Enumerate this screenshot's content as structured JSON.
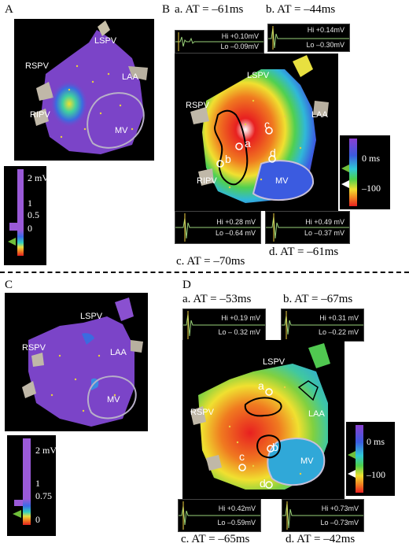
{
  "colors": {
    "map_background": "#000000",
    "tissue_purple": "#7b44c8",
    "egm_trace": "#9ad27a",
    "marker_green": "#6fbf3a",
    "marker_purple": "#9b59d0"
  },
  "divider": "dashed",
  "panels": {
    "A": {
      "letter": "A",
      "labels": {
        "lspv": "LSPV",
        "rspv": "RSPV",
        "laa": "LAA",
        "ripv": "RIPV",
        "mv": "MV"
      },
      "colorbar": {
        "top": "2 mV",
        "mid1": "1",
        "mid2": "0.5",
        "bottom": "0"
      }
    },
    "B": {
      "letter": "B",
      "labels": {
        "lspv": "LSPV",
        "rspv": "RSPV",
        "laa": "LAA",
        "ripv": "RIPV",
        "mv": "MV"
      },
      "points": {
        "a": "a",
        "b": "b",
        "c": "c",
        "d": "d"
      },
      "at": {
        "a": "a. AT = –61ms",
        "b": "b. AT = –44ms",
        "c": "c. AT = –70ms",
        "d": "d. AT = –61ms"
      },
      "egm": {
        "a": {
          "hi": "Hi +0.10mV",
          "lo": "Lo –0.09mV"
        },
        "b": {
          "hi": "Hi +0.14mV",
          "lo": "Lo –0.30mV"
        },
        "c": {
          "hi": "Hi +0.28 mV",
          "lo": "Lo –0.64 mV"
        },
        "d": {
          "hi": "Hi +0.49 mV",
          "lo": "Lo –0.37 mV"
        }
      },
      "colorbar": {
        "top": "0 ms",
        "bottom": "–100"
      }
    },
    "C": {
      "letter": "C",
      "labels": {
        "lspv": "LSPV",
        "rspv": "RSPV",
        "laa": "LAA",
        "mv": "MV"
      },
      "colorbar": {
        "top": "2 mV",
        "mid1": "1",
        "mid2": "0.75",
        "bottom": "0"
      }
    },
    "D": {
      "letter": "D",
      "labels": {
        "lspv": "LSPV",
        "rspv": "RSPV",
        "laa": "LAA",
        "mv": "MV"
      },
      "points": {
        "a": "a",
        "b": "b",
        "c": "c",
        "d": "d"
      },
      "at": {
        "a": "a. AT = –53ms",
        "b": "b. AT = –67ms",
        "c": "c. AT = –65ms",
        "d": "d. AT = –42ms"
      },
      "egm": {
        "a": {
          "hi": "Hi +0.19 mV",
          "lo": "Lo – 0.32 mV"
        },
        "b": {
          "hi": "Hi +0.31 mV",
          "lo": "Lo –0.22 mV"
        },
        "c": {
          "hi": "Hi +0.42mV",
          "lo": "Lo –0.59mV"
        },
        "d": {
          "hi": "Hi +0.73mV",
          "lo": "Lo –0.73mV"
        }
      },
      "colorbar": {
        "top": "0 ms",
        "bottom": "–100"
      }
    }
  }
}
